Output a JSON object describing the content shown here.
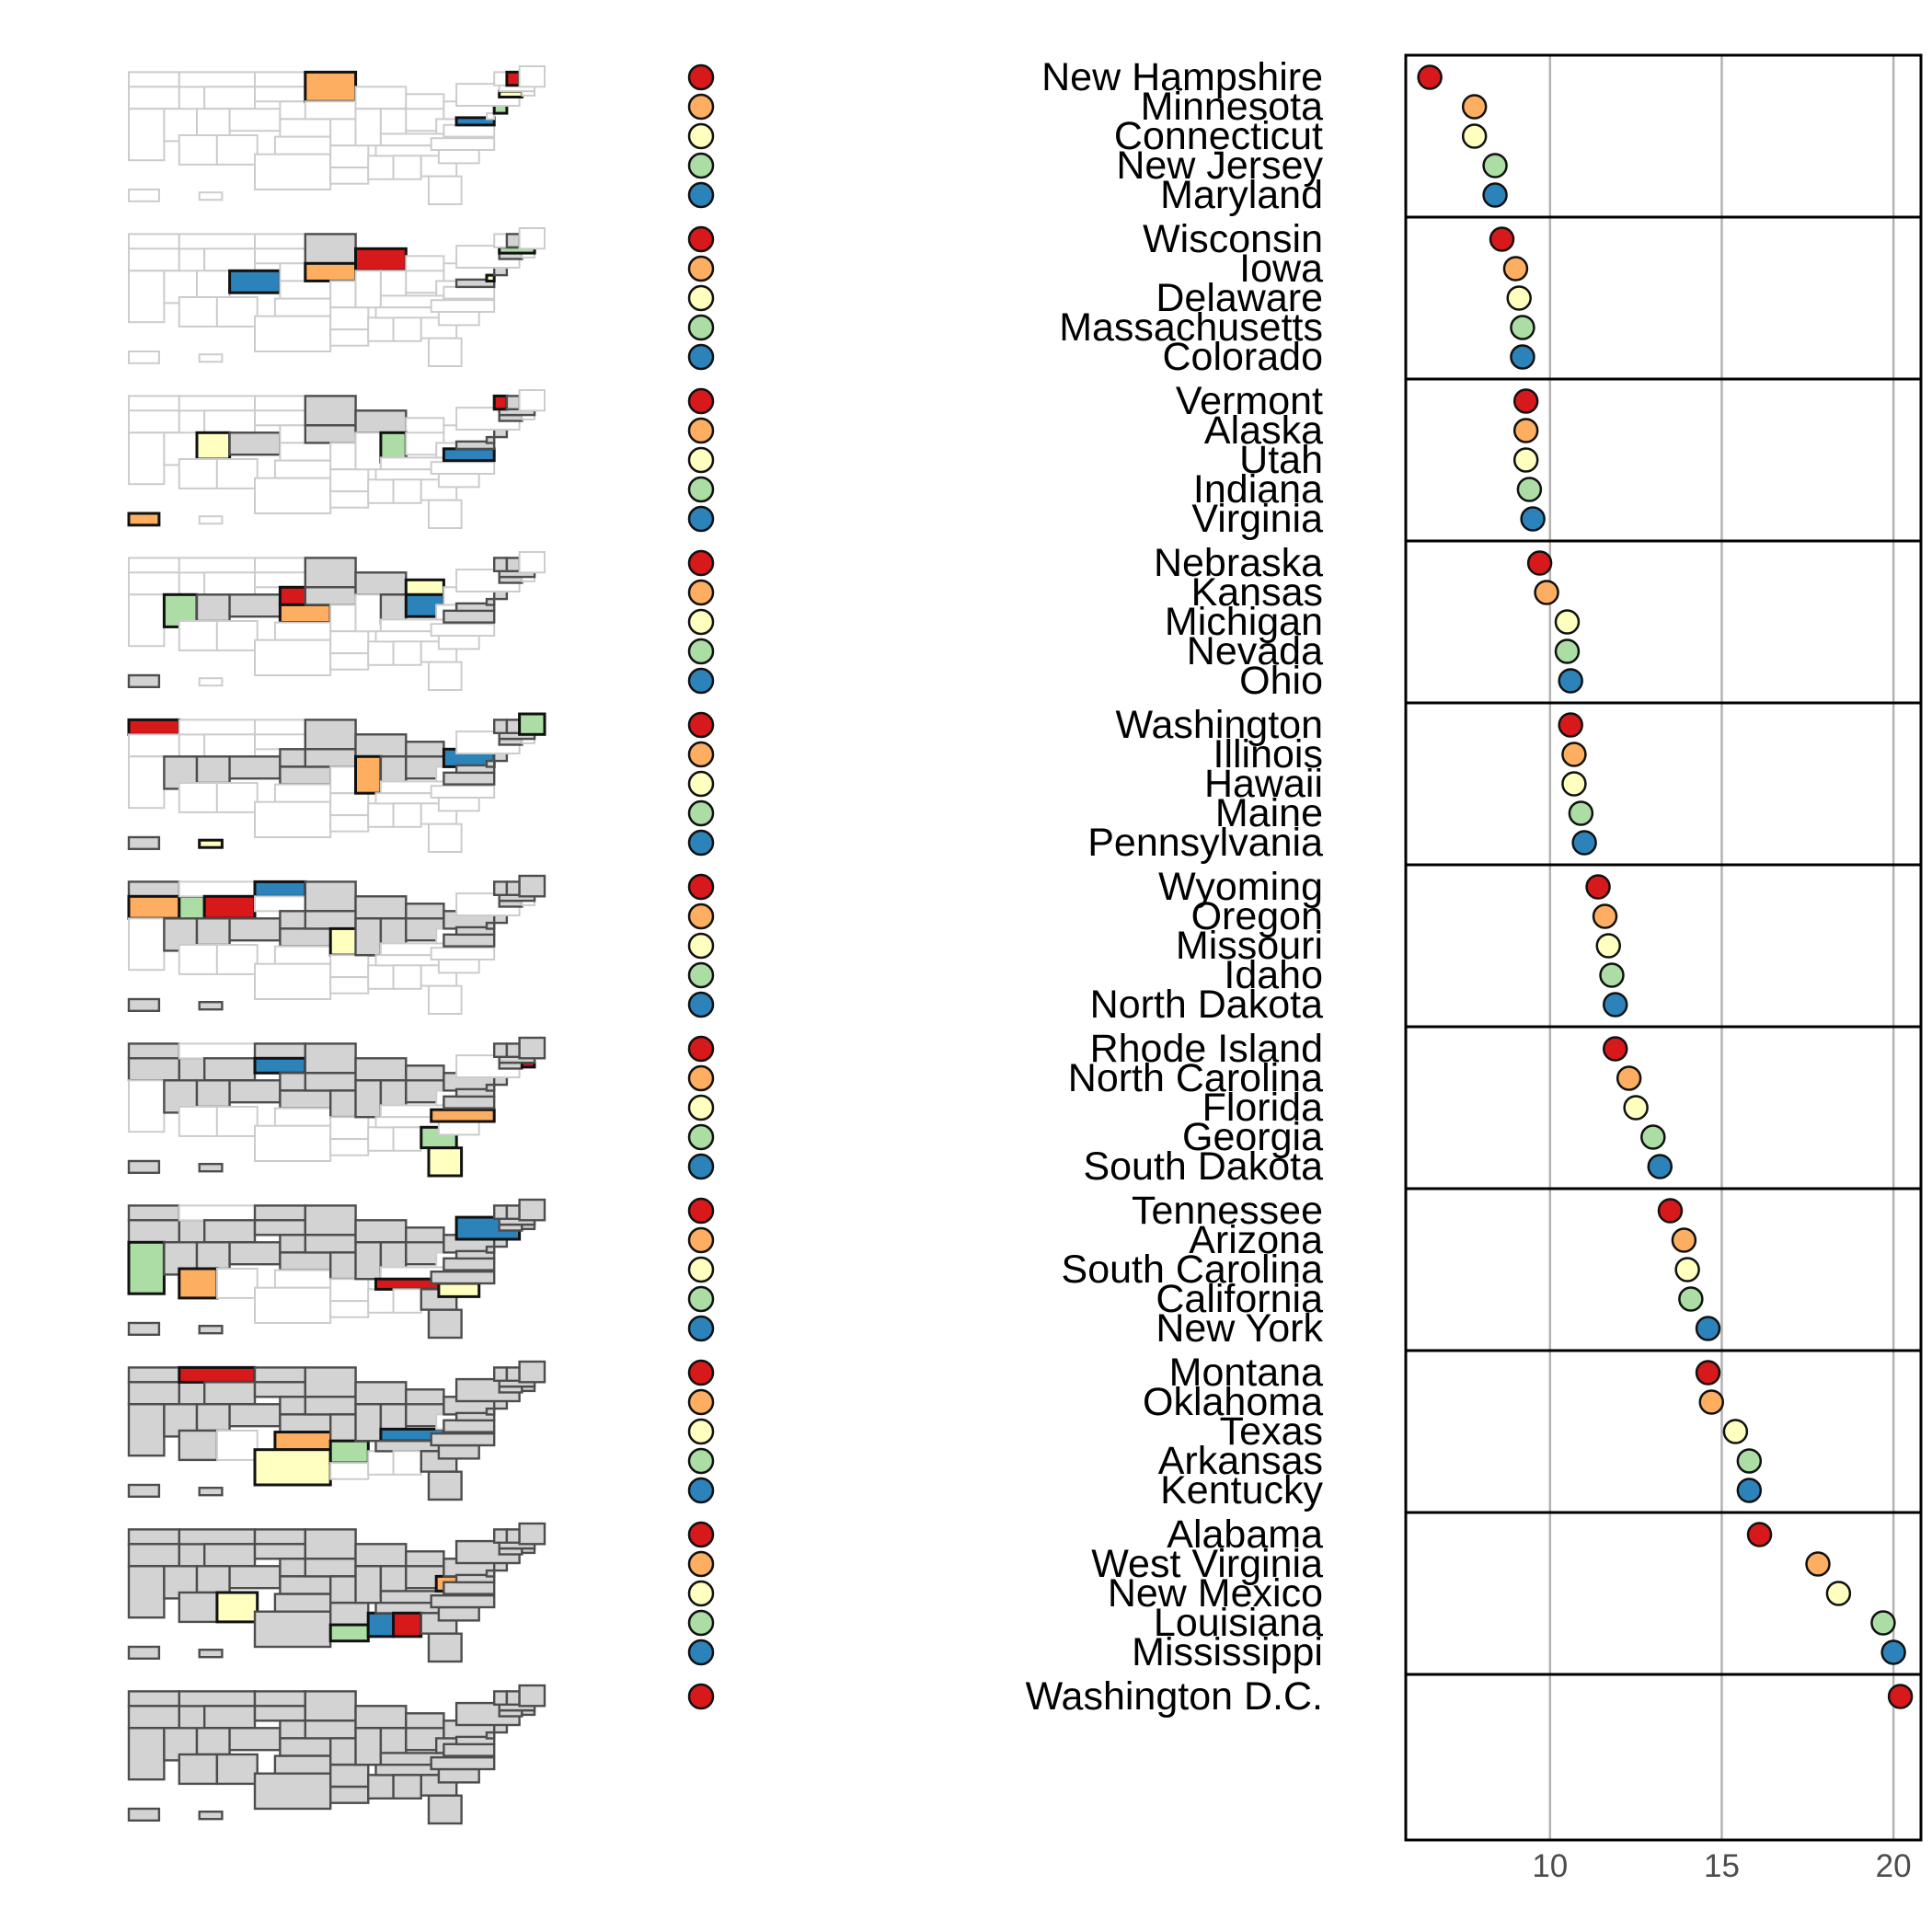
{
  "chart_data": {
    "type": "scatter",
    "title": "",
    "xlabel": "",
    "ylabel": "",
    "xlim": [
      5.8,
      20.8
    ],
    "xticks": [
      10,
      15,
      20
    ],
    "grid": true,
    "legend": "none",
    "group_size": 5,
    "colors": [
      "#d7191c",
      "#fdae61",
      "#ffffbf",
      "#abdda4",
      "#2b83ba"
    ],
    "points": [
      {
        "label": "New Hampshire",
        "value": 6.5
      },
      {
        "label": "Minnesota",
        "value": 7.8
      },
      {
        "label": "Connecticut",
        "value": 7.8
      },
      {
        "label": "New Jersey",
        "value": 8.4
      },
      {
        "label": "Maryland",
        "value": 8.4
      },
      {
        "label": "Wisconsin",
        "value": 8.6
      },
      {
        "label": "Iowa",
        "value": 9.0
      },
      {
        "label": "Delaware",
        "value": 9.1
      },
      {
        "label": "Massachusetts",
        "value": 9.2
      },
      {
        "label": "Colorado",
        "value": 9.2
      },
      {
        "label": "Vermont",
        "value": 9.3
      },
      {
        "label": "Alaska",
        "value": 9.3
      },
      {
        "label": "Utah",
        "value": 9.3
      },
      {
        "label": "Indiana",
        "value": 9.4
      },
      {
        "label": "Virginia",
        "value": 9.5
      },
      {
        "label": "Nebraska",
        "value": 9.7
      },
      {
        "label": "Kansas",
        "value": 9.9
      },
      {
        "label": "Michigan",
        "value": 10.5
      },
      {
        "label": "Nevada",
        "value": 10.5
      },
      {
        "label": "Ohio",
        "value": 10.6
      },
      {
        "label": "Washington",
        "value": 10.6
      },
      {
        "label": "Illinois",
        "value": 10.7
      },
      {
        "label": "Hawaii",
        "value": 10.7
      },
      {
        "label": "Maine",
        "value": 10.9
      },
      {
        "label": "Pennsylvania",
        "value": 11.0
      },
      {
        "label": "Wyoming",
        "value": 11.4
      },
      {
        "label": "Oregon",
        "value": 11.6
      },
      {
        "label": "Missouri",
        "value": 11.7
      },
      {
        "label": "Idaho",
        "value": 11.8
      },
      {
        "label": "North Dakota",
        "value": 11.9
      },
      {
        "label": "Rhode Island",
        "value": 11.9
      },
      {
        "label": "North Carolina",
        "value": 12.3
      },
      {
        "label": "Florida",
        "value": 12.5
      },
      {
        "label": "Georgia",
        "value": 13.0
      },
      {
        "label": "South Dakota",
        "value": 13.2
      },
      {
        "label": "Tennessee",
        "value": 13.5
      },
      {
        "label": "Arizona",
        "value": 13.9
      },
      {
        "label": "South Carolina",
        "value": 14.0
      },
      {
        "label": "California",
        "value": 14.1
      },
      {
        "label": "New York",
        "value": 14.6
      },
      {
        "label": "Montana",
        "value": 14.6
      },
      {
        "label": "Oklahoma",
        "value": 14.7
      },
      {
        "label": "Texas",
        "value": 15.4
      },
      {
        "label": "Arkansas",
        "value": 15.8
      },
      {
        "label": "Kentucky",
        "value": 15.8
      },
      {
        "label": "Alabama",
        "value": 16.1
      },
      {
        "label": "West Virginia",
        "value": 17.8
      },
      {
        "label": "New Mexico",
        "value": 18.4
      },
      {
        "label": "Louisiana",
        "value": 19.7
      },
      {
        "label": "Mississippi",
        "value": 20.0
      },
      {
        "label": "Washington D.C.",
        "value": 20.2
      }
    ],
    "panels": [
      {
        "highlight": [
          {
            "shape": "ne-tri",
            "color": "#d7191c"
          },
          {
            "shape": "mn",
            "color": "#fdae61"
          },
          {
            "shape": "sne",
            "color": "#ffffbf"
          },
          {
            "shape": "nj",
            "color": "#abdda4"
          },
          {
            "shape": "md",
            "color": "#2b83ba"
          }
        ]
      },
      {
        "highlight": [
          {
            "shape": "wi",
            "color": "#d7191c"
          },
          {
            "shape": "ia",
            "color": "#fdae61"
          },
          {
            "shape": "de",
            "color": "#ffffbf"
          },
          {
            "shape": "ma",
            "color": "#abdda4"
          },
          {
            "shape": "co",
            "color": "#2b83ba"
          }
        ]
      },
      {
        "highlight": [
          {
            "shape": "vt",
            "color": "#d7191c"
          },
          {
            "shape": "ak",
            "color": "#fdae61"
          },
          {
            "shape": "ut",
            "color": "#ffffbf"
          },
          {
            "shape": "in",
            "color": "#abdda4"
          },
          {
            "shape": "va",
            "color": "#2b83ba"
          }
        ]
      },
      {
        "highlight": [
          {
            "shape": "ne",
            "color": "#d7191c"
          },
          {
            "shape": "ks",
            "color": "#fdae61"
          },
          {
            "shape": "mi",
            "color": "#ffffbf"
          },
          {
            "shape": "nv",
            "color": "#abdda4"
          },
          {
            "shape": "oh",
            "color": "#2b83ba"
          }
        ]
      },
      {
        "highlight": [
          {
            "shape": "wa",
            "color": "#d7191c"
          },
          {
            "shape": "il",
            "color": "#fdae61"
          },
          {
            "shape": "hi",
            "color": "#ffffbf"
          },
          {
            "shape": "me",
            "color": "#abdda4"
          },
          {
            "shape": "pa",
            "color": "#2b83ba"
          }
        ]
      },
      {
        "highlight": [
          {
            "shape": "wy",
            "color": "#d7191c"
          },
          {
            "shape": "or",
            "color": "#fdae61"
          },
          {
            "shape": "mo",
            "color": "#ffffbf"
          },
          {
            "shape": "id",
            "color": "#abdda4"
          },
          {
            "shape": "nd",
            "color": "#2b83ba"
          }
        ]
      },
      {
        "highlight": [
          {
            "shape": "ri",
            "color": "#d7191c"
          },
          {
            "shape": "nc",
            "color": "#fdae61"
          },
          {
            "shape": "fl",
            "color": "#ffffbf"
          },
          {
            "shape": "ga",
            "color": "#abdda4"
          },
          {
            "shape": "sd",
            "color": "#2b83ba"
          }
        ]
      },
      {
        "highlight": [
          {
            "shape": "tn",
            "color": "#d7191c"
          },
          {
            "shape": "az",
            "color": "#fdae61"
          },
          {
            "shape": "sc",
            "color": "#ffffbf"
          },
          {
            "shape": "ca",
            "color": "#abdda4"
          },
          {
            "shape": "ny",
            "color": "#2b83ba"
          }
        ]
      },
      {
        "highlight": [
          {
            "shape": "mt",
            "color": "#d7191c"
          },
          {
            "shape": "ok",
            "color": "#fdae61"
          },
          {
            "shape": "tx",
            "color": "#ffffbf"
          },
          {
            "shape": "ar",
            "color": "#abdda4"
          },
          {
            "shape": "ky",
            "color": "#2b83ba"
          }
        ]
      },
      {
        "highlight": [
          {
            "shape": "al",
            "color": "#d7191c"
          },
          {
            "shape": "wv",
            "color": "#fdae61"
          },
          {
            "shape": "nm",
            "color": "#ffffbf"
          },
          {
            "shape": "la",
            "color": "#abdda4"
          },
          {
            "shape": "ms",
            "color": "#2b83ba"
          }
        ]
      }
    ]
  }
}
